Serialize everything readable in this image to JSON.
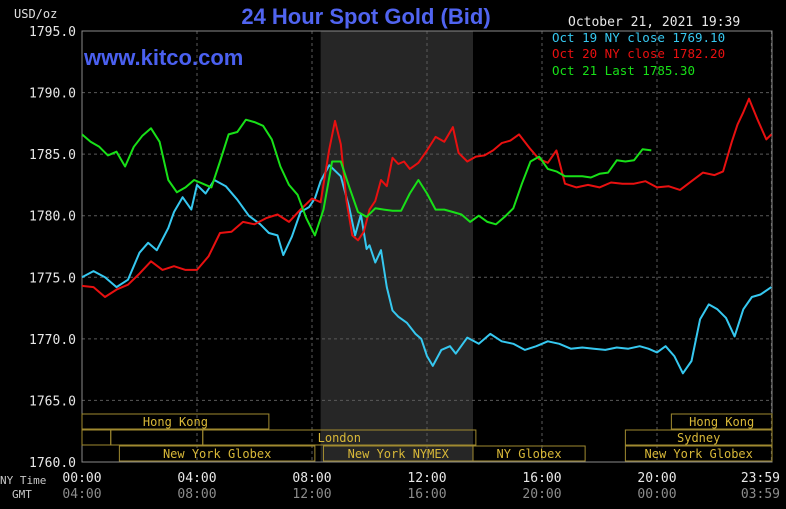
{
  "title": "24 Hour Spot Gold (Bid)",
  "unit_label": "USD/oz",
  "timestamp": "October 21, 2021 19:39",
  "watermark": "www.kitco.com",
  "legend": [
    {
      "text": "Oct 19 NY close 1769.10",
      "color": "#36c8f0"
    },
    {
      "text": "Oct 20 NY close 1782.20",
      "color": "#e81010"
    },
    {
      "text": "Oct 21 Last 1785.30",
      "color": "#18e018"
    }
  ],
  "axis_row_labels": {
    "ny": "NY Time",
    "gmt": "GMT"
  },
  "market_sessions": [
    {
      "label": "Hong Kong",
      "start": 0,
      "end": 6.5,
      "row": 1
    },
    {
      "label": "Hong Kong",
      "start": 20.5,
      "end": 24,
      "row": 1
    },
    {
      "label": "",
      "start": 0,
      "end": 1,
      "row": 2
    },
    {
      "label": "",
      "start": 1,
      "end": 4.2,
      "row": 2
    },
    {
      "label": "London",
      "start": 4.2,
      "end": 13.7,
      "row": 2
    },
    {
      "label": "Sydney",
      "start": 18.9,
      "end": 24,
      "row": 2
    },
    {
      "label": "New York Globex",
      "start": 1.3,
      "end": 8.1,
      "row": 3
    },
    {
      "label": "New York NYMEX",
      "start": 8.4,
      "end": 13.6,
      "row": 3
    },
    {
      "label": "NY Globex",
      "start": 13.6,
      "end": 17.5,
      "row": 3
    },
    {
      "label": "New York Globex",
      "start": 18.9,
      "end": 24,
      "row": 3
    }
  ],
  "chart_data": {
    "type": "line",
    "title": "24 Hour Spot Gold (Bid)",
    "ylabel": "USD/oz",
    "ylim": [
      1760,
      1795
    ],
    "xlim": [
      0,
      24
    ],
    "yticks": [
      "1760.0",
      "1765.0",
      "1770.0",
      "1775.0",
      "1780.0",
      "1785.0",
      "1790.0",
      "1795.0"
    ],
    "xticks_ny": [
      "00:00",
      "04:00",
      "08:00",
      "12:00",
      "16:00",
      "20:00",
      "23:59"
    ],
    "xticks_gmt": [
      "04:00",
      "08:00",
      "12:00",
      "16:00",
      "20:00",
      "00:00",
      "03:59"
    ],
    "shaded_period": [
      8.3,
      13.6
    ],
    "grid": true,
    "series": [
      {
        "name": "Oct 19 NY close 1769.10",
        "color": "#36c8f0",
        "x": [
          0,
          0.4,
          0.8,
          1.2,
          1.6,
          2,
          2.3,
          2.6,
          3,
          3.2,
          3.5,
          3.8,
          4,
          4.3,
          4.6,
          5,
          5.4,
          5.8,
          6.2,
          6.5,
          6.8,
          7,
          7.3,
          7.6,
          7.9,
          8.1,
          8.3,
          8.6,
          9,
          9.3,
          9.5,
          9.7,
          9.9,
          10,
          10.2,
          10.4,
          10.6,
          10.8,
          11,
          11.3,
          11.6,
          11.8,
          12,
          12.2,
          12.5,
          12.8,
          13,
          13.4,
          13.8,
          14.2,
          14.6,
          15,
          15.4,
          15.8,
          16.2,
          16.6,
          17,
          17.4,
          17.8,
          18.2,
          18.6,
          19,
          19.4,
          19.7,
          20,
          20.3,
          20.6,
          20.9,
          21.2,
          21.5,
          21.8,
          22.1,
          22.4,
          22.7,
          23,
          23.3,
          23.6,
          23.98
        ],
        "y": [
          1775,
          1775.5,
          1775,
          1774.2,
          1774.8,
          1777,
          1777.8,
          1777.2,
          1779,
          1780.3,
          1781.5,
          1780.5,
          1782.5,
          1781.8,
          1782.9,
          1782.4,
          1781.3,
          1780,
          1779.3,
          1778.6,
          1778.4,
          1776.8,
          1778.3,
          1780.3,
          1780.7,
          1781.4,
          1782.8,
          1784.1,
          1783.2,
          1780.6,
          1778.4,
          1780.1,
          1777.3,
          1777.6,
          1776.2,
          1777.2,
          1774.2,
          1772.3,
          1771.8,
          1771.3,
          1770.4,
          1770,
          1768.6,
          1767.8,
          1769.1,
          1769.4,
          1768.8,
          1770.1,
          1769.6,
          1770.4,
          1769.8,
          1769.6,
          1769.1,
          1769.4,
          1769.8,
          1769.6,
          1769.2,
          1769.3,
          1769.2,
          1769.1,
          1769.3,
          1769.2,
          1769.4,
          1769.2,
          1768.9,
          1769.4,
          1768.6,
          1767.2,
          1768.2,
          1771.6,
          1772.8,
          1772.4,
          1771.7,
          1770.2,
          1772.4,
          1773.4,
          1773.6,
          1774.2
        ]
      },
      {
        "name": "Oct 20 NY close 1782.20",
        "color": "#e81010",
        "x": [
          0,
          0.4,
          0.8,
          1.2,
          1.6,
          2,
          2.4,
          2.8,
          3.2,
          3.6,
          4,
          4.4,
          4.8,
          5.2,
          5.6,
          6,
          6.4,
          6.8,
          7.2,
          7.6,
          8,
          8.3,
          8.6,
          8.8,
          9,
          9.2,
          9.4,
          9.6,
          9.8,
          10,
          10.2,
          10.4,
          10.6,
          10.8,
          11,
          11.2,
          11.4,
          11.7,
          12,
          12.3,
          12.6,
          12.9,
          13.1,
          13.4,
          13.7,
          14,
          14.3,
          14.6,
          14.9,
          15.2,
          15.6,
          15.9,
          16.2,
          16.5,
          16.8,
          17.2,
          17.6,
          18,
          18.4,
          18.8,
          19.2,
          19.6,
          20,
          20.4,
          20.8,
          21.2,
          21.6,
          22,
          22.3,
          22.6,
          22.8,
          23,
          23.2,
          23.5,
          23.8,
          23.98
        ],
        "y": [
          1774.3,
          1774.2,
          1773.4,
          1774,
          1774.4,
          1775.3,
          1776.3,
          1775.6,
          1775.9,
          1775.6,
          1775.6,
          1776.7,
          1778.6,
          1778.7,
          1779.5,
          1779.3,
          1779.8,
          1780.1,
          1779.5,
          1780.5,
          1781.4,
          1781.1,
          1785.4,
          1787.7,
          1785.8,
          1781.2,
          1778.4,
          1778,
          1778.7,
          1780.5,
          1781.2,
          1782.9,
          1782.4,
          1784.7,
          1784.2,
          1784.4,
          1783.8,
          1784.3,
          1785.3,
          1786.4,
          1786,
          1787.2,
          1785.1,
          1784.4,
          1784.8,
          1784.9,
          1785.3,
          1785.9,
          1786.1,
          1786.6,
          1785.4,
          1784.6,
          1784.3,
          1785.3,
          1782.6,
          1782.3,
          1782.5,
          1782.3,
          1782.7,
          1782.6,
          1782.6,
          1782.8,
          1782.3,
          1782.4,
          1782.1,
          1782.8,
          1783.5,
          1783.3,
          1783.6,
          1786,
          1787.4,
          1788.4,
          1789.5,
          1787.8,
          1786.2,
          1786.6
        ]
      },
      {
        "name": "Oct 21 Last 1785.30",
        "color": "#18e018",
        "x": [
          0,
          0.3,
          0.6,
          0.9,
          1.2,
          1.5,
          1.8,
          2.1,
          2.4,
          2.7,
          3,
          3.3,
          3.6,
          3.9,
          4.2,
          4.5,
          4.8,
          5.1,
          5.4,
          5.7,
          6,
          6.3,
          6.6,
          6.9,
          7.2,
          7.5,
          7.8,
          8.1,
          8.4,
          8.7,
          9,
          9.3,
          9.6,
          9.9,
          10.2,
          10.5,
          10.8,
          11.1,
          11.4,
          11.7,
          12,
          12.3,
          12.6,
          12.9,
          13.2,
          13.5,
          13.8,
          14.1,
          14.4,
          14.7,
          15,
          15.3,
          15.6,
          15.9,
          16.2,
          16.5,
          16.8,
          17.1,
          17.4,
          17.7,
          18,
          18.3,
          18.6,
          18.9,
          19.2,
          19.5,
          19.8
        ],
        "y": [
          1786.6,
          1786,
          1785.6,
          1784.9,
          1785.2,
          1784,
          1785.6,
          1786.5,
          1787.1,
          1786,
          1782.9,
          1781.9,
          1782.3,
          1782.9,
          1782.6,
          1782.3,
          1784.4,
          1786.6,
          1786.8,
          1787.8,
          1787.6,
          1787.3,
          1786.2,
          1784,
          1782.5,
          1781.7,
          1779.8,
          1778.4,
          1780.5,
          1784.4,
          1784.4,
          1782.3,
          1780.3,
          1779.9,
          1780.6,
          1780.5,
          1780.4,
          1780.4,
          1781.8,
          1782.9,
          1781.8,
          1780.5,
          1780.5,
          1780.3,
          1780.1,
          1779.5,
          1780,
          1779.5,
          1779.3,
          1779.9,
          1780.6,
          1782.6,
          1784.4,
          1784.8,
          1783.8,
          1783.6,
          1783.2,
          1783.2,
          1783.2,
          1783.1,
          1783.4,
          1783.5,
          1784.5,
          1784.4,
          1784.5,
          1785.4,
          1785.3
        ]
      }
    ]
  }
}
